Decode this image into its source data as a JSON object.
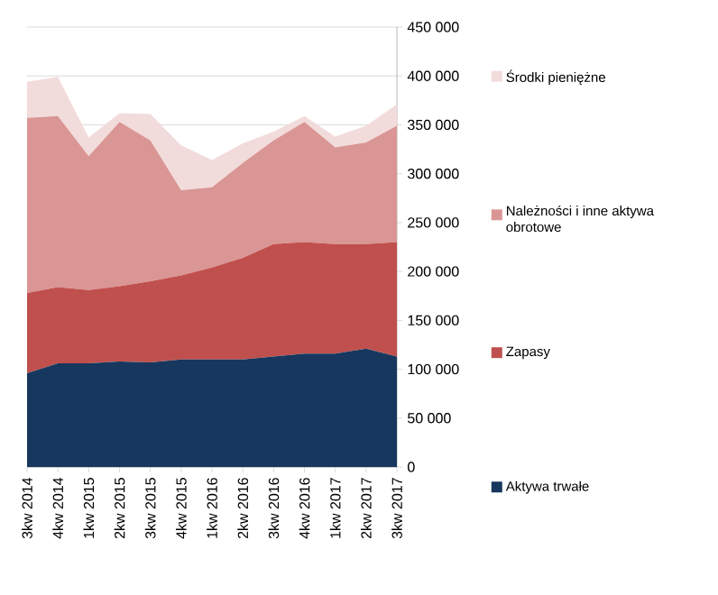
{
  "chart_data": {
    "type": "area",
    "stacked": true,
    "grid": "y",
    "legend": "right",
    "categories": [
      "3kw 2014",
      "4kw 2014",
      "1kw 2015",
      "2kw 2015",
      "3kw 2015",
      "4kw 2015",
      "1kw 2016",
      "2kw 2016",
      "3kw 2016",
      "4kw 2016",
      "1kw 2017",
      "2kw 2017",
      "3kw 2017"
    ],
    "series": [
      {
        "name": "Aktywa trwałe",
        "color": "#17375e",
        "values": [
          96000,
          106000,
          106000,
          108000,
          107000,
          110000,
          110000,
          110000,
          113000,
          116000,
          116000,
          121000,
          113000
        ]
      },
      {
        "name": "Zapasy",
        "color": "#c0504d",
        "values": [
          82000,
          78000,
          75000,
          77000,
          83000,
          86000,
          94000,
          104000,
          115000,
          114000,
          112000,
          107000,
          117000
        ]
      },
      {
        "name": "Należności i inne aktywa obrotowe",
        "color": "#d99694",
        "values": [
          179000,
          175000,
          137000,
          168000,
          144000,
          87000,
          82000,
          97000,
          106000,
          123000,
          99000,
          104000,
          119000
        ]
      },
      {
        "name": "Środki pieniężne",
        "color": "#f2dcdb",
        "values": [
          37000,
          40000,
          19000,
          9000,
          27000,
          46000,
          28000,
          20000,
          9000,
          6000,
          11000,
          17000,
          22000
        ]
      }
    ],
    "ylim": [
      0,
      450000
    ],
    "yticks": [
      {
        "value": 0,
        "label": "0"
      },
      {
        "value": 50000,
        "label": "50 000"
      },
      {
        "value": 100000,
        "label": "100 000"
      },
      {
        "value": 150000,
        "label": "150 000"
      },
      {
        "value": 200000,
        "label": "200 000"
      },
      {
        "value": 250000,
        "label": "250 000"
      },
      {
        "value": 300000,
        "label": "300 000"
      },
      {
        "value": 350000,
        "label": "350 000"
      },
      {
        "value": 400000,
        "label": "400 000"
      },
      {
        "value": 450000,
        "label": "450 000"
      }
    ]
  }
}
